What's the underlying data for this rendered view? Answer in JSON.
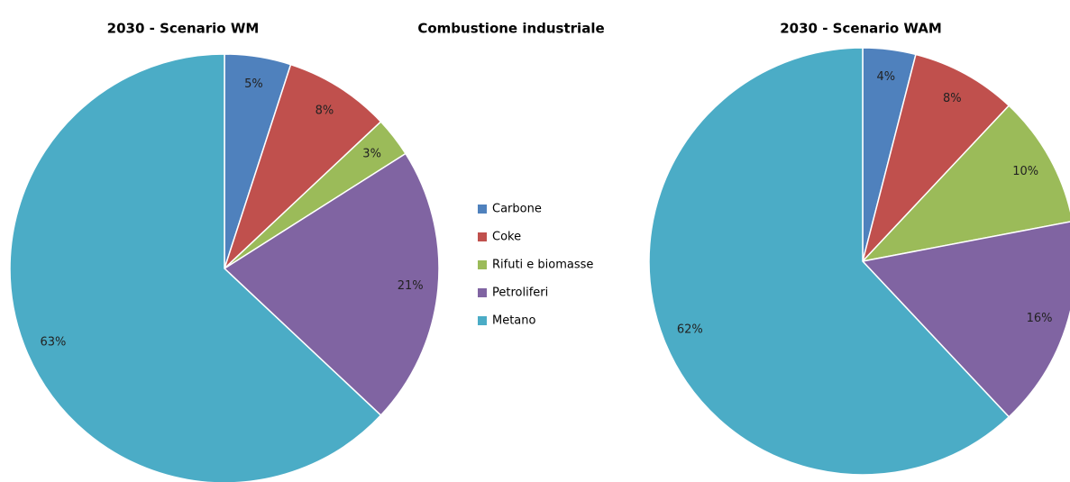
{
  "title": "Combustione industriale",
  "legend": {
    "categories": [
      "Carbone",
      "Coke",
      "Rifuti e biomasse",
      "Petroliferi",
      "Metano"
    ],
    "colors": [
      "#4f81bd",
      "#c0504d",
      "#9bbb59",
      "#8064a2",
      "#4bacc6"
    ]
  },
  "chart_data": [
    {
      "type": "pie",
      "title": "2030 - Scenario WM",
      "values": [
        5,
        8,
        3,
        21,
        63
      ],
      "value_labels": [
        "5%",
        "8%",
        "3%",
        "21%",
        "63%"
      ]
    },
    {
      "type": "pie",
      "title": "2030 - Scenario WAM",
      "values": [
        4,
        8,
        10,
        16,
        62
      ],
      "value_labels": [
        "4%",
        "8%",
        "10%",
        "16%",
        "62%"
      ]
    }
  ]
}
